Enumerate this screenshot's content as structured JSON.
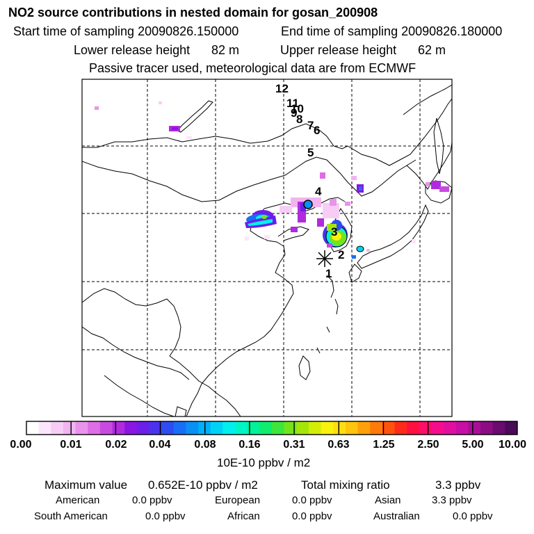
{
  "title": "NO2 source contributions in nested domain for gosan_200908",
  "header": {
    "start_label": "Start time of sampling 20090826.150000",
    "end_label": "End time of sampling 20090826.180000",
    "lower_label": "Lower release height",
    "lower_value": "82 m",
    "upper_label": "Upper release height",
    "upper_value": "62 m",
    "tracer_note": "Passive tracer used, meteorological data are from ECMWF"
  },
  "map": {
    "trajectory_points": [
      "1",
      "2",
      "3",
      "4",
      "5",
      "6",
      "7",
      "8",
      "9",
      "10",
      "11",
      "12"
    ],
    "receptor_marker": "asterisk-marker"
  },
  "colorbar": {
    "tick_labels": [
      "0.00",
      "0.01",
      "0.02",
      "0.04",
      "0.08",
      "0.16",
      "0.31",
      "0.63",
      "1.25",
      "2.50",
      "5.00",
      "10.00"
    ],
    "unit": "10E-10 ppbv / m2",
    "colors": [
      "#ffffff",
      "#fce6fb",
      "#f7cdf5",
      "#f2b4f0",
      "#e993eb",
      "#dd6ee5",
      "#c84be0",
      "#b02bde",
      "#8b15e2",
      "#6b1fe8",
      "#4b33ee",
      "#2f4cf2",
      "#1a6ef5",
      "#0a8ff7",
      "#00b0f8",
      "#00d2f5",
      "#00f0ee",
      "#00f5c6",
      "#00f29a",
      "#10ed6e",
      "#3de63d",
      "#73e41a",
      "#a4e60a",
      "#d4ed08",
      "#f8f20d",
      "#ffde10",
      "#ffc40c",
      "#ffa00a",
      "#ff7a0a",
      "#ff520e",
      "#ff2a1a",
      "#ff1040",
      "#ff0d6a",
      "#f60d8c",
      "#e10fa0",
      "#c80ea4",
      "#a90f96",
      "#8a0d84",
      "#6a0b6f",
      "#4a0a56"
    ]
  },
  "stats": {
    "max_label": "Maximum value",
    "max_value": "0.652E-10 ppbv / m2",
    "total_label": "Total mixing ratio",
    "total_value": "3.3 ppbv",
    "american_label": "American",
    "american_value": "0.0 ppbv",
    "european_label": "European",
    "european_value": "0.0 ppbv",
    "asian_label": "Asian",
    "asian_value": "3.3 ppbv",
    "south_american_label": "South American",
    "south_american_value": "0.0 ppbv",
    "african_label": "African",
    "african_value": "0.0 ppbv",
    "australian_label": "Australian",
    "australian_value": "0.0 ppbv"
  }
}
